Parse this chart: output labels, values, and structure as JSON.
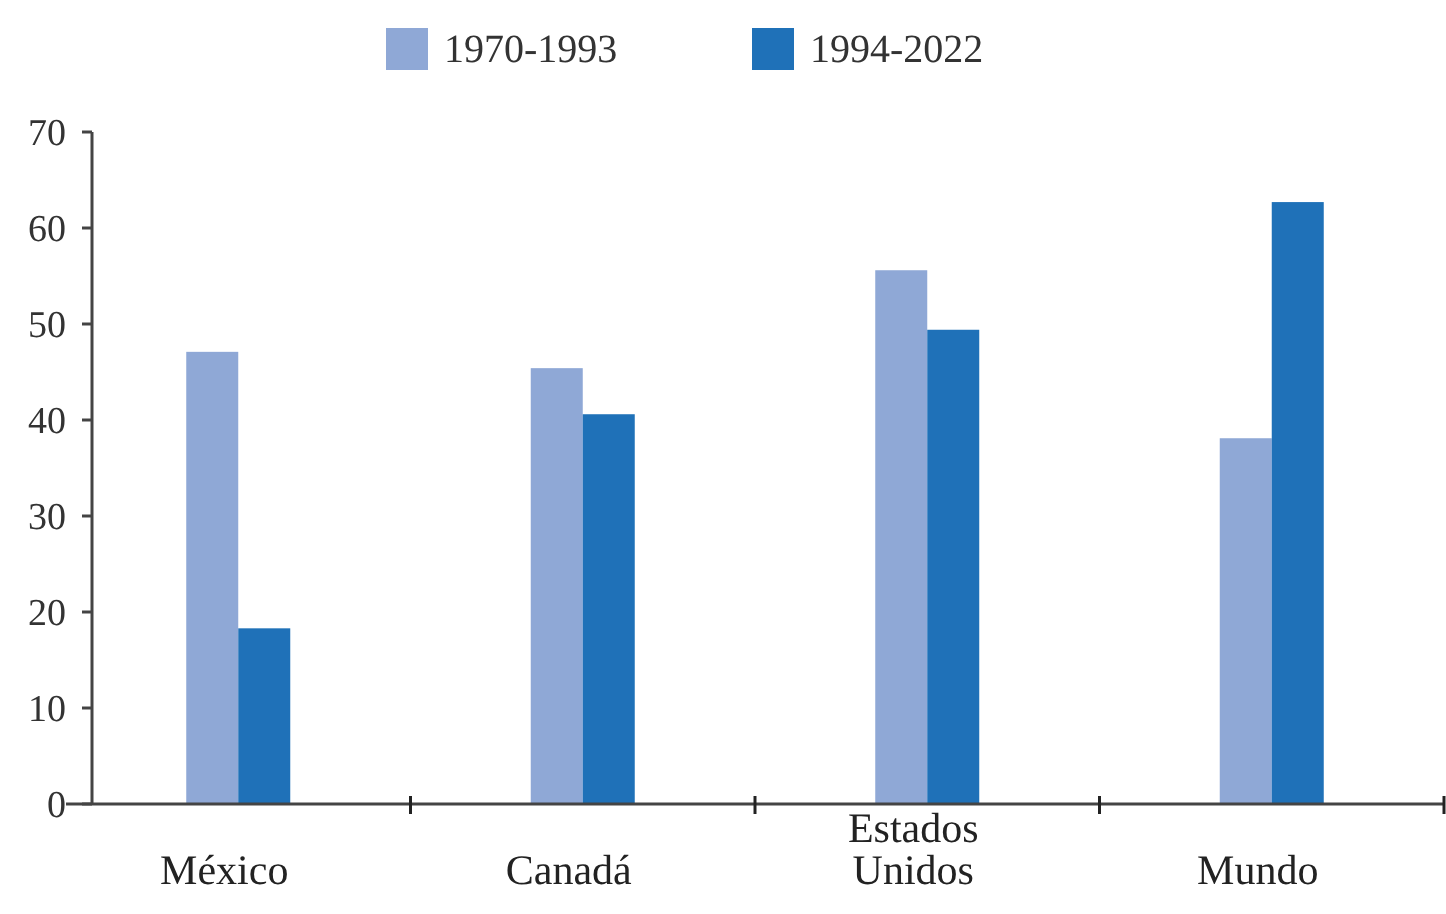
{
  "chart_data": {
    "type": "bar",
    "categories": [
      "México",
      "Canadá",
      "Estados Unidos",
      "Mundo"
    ],
    "series": [
      {
        "name": "1970-1993",
        "color": "#8fa8d6",
        "values": [
          47.1,
          45.4,
          55.6,
          38.1
        ]
      },
      {
        "name": "1994-2022",
        "color": "#1f71b8",
        "values": [
          18.3,
          40.6,
          49.4,
          62.7
        ]
      }
    ],
    "ylim": [
      0,
      70
    ],
    "yticks": [
      0,
      10,
      20,
      30,
      40,
      50,
      60,
      70
    ],
    "grid": false,
    "legend": "top"
  }
}
